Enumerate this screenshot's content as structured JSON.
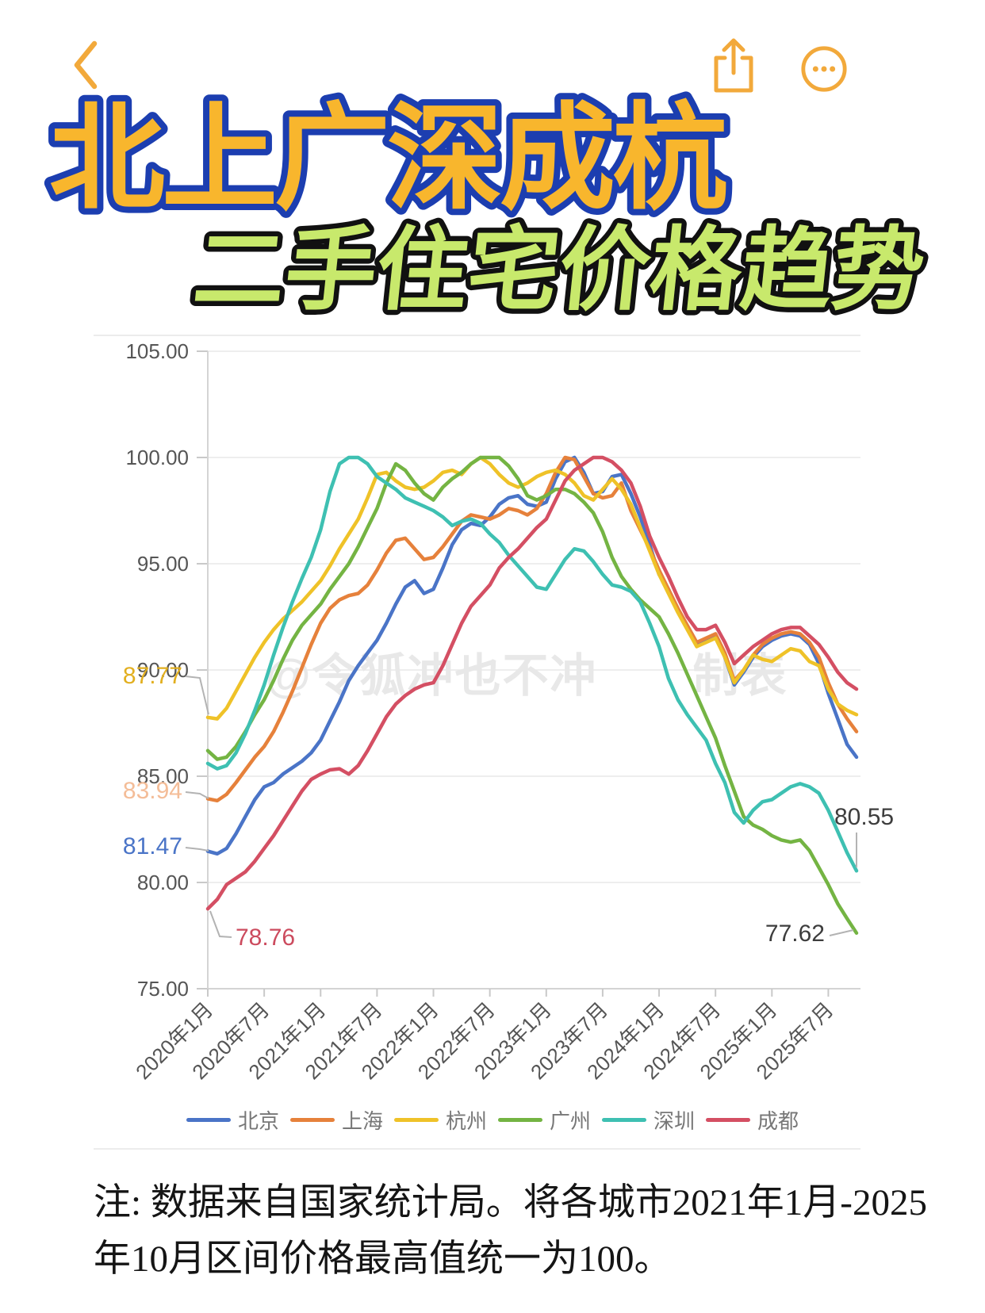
{
  "header": {
    "back_icon": "chevron-left",
    "share_icon": "share-up-arrow",
    "more_icon": "ellipsis-circle",
    "icon_color": "#F2A93B"
  },
  "title": {
    "line1": "北上广深成杭",
    "line1_fill": "#F8B62D",
    "line1_stroke": "#1C3EB0",
    "line2": "二手住宅价格趋势",
    "line2_fill": "#C8E96C",
    "line2_stroke": "#111111"
  },
  "chart_data": {
    "type": "line",
    "title": "北上广深成杭二手住宅价格趋势",
    "xlabel": "",
    "ylabel": "",
    "ylim": [
      75,
      105
    ],
    "y_step": 5,
    "grid": true,
    "legend_position": "bottom",
    "y_tick_labels": [
      "105.00",
      "100.00",
      "95.00",
      "90.00",
      "85.00",
      "80.00",
      "75.00"
    ],
    "x_tick_labels": [
      "2020年1月",
      "2020年7月",
      "2021年1月",
      "2021年7月",
      "2022年1月",
      "2022年7月",
      "2023年1月",
      "2023年7月",
      "2024年1月",
      "2024年7月",
      "2025年1月",
      "2025年7月"
    ],
    "x_tick_every": 6,
    "n_points": 70,
    "x_range_note": "monthly from 2020-01 to 2025-10, normalized so each city's 2021.01-2025.10 max = 100",
    "watermark": "@令狐冲也不冲　　制表",
    "series": [
      {
        "name": "北京",
        "color": "#4A74C7",
        "values": [
          81.47,
          81.35,
          81.6,
          82.3,
          83.1,
          83.9,
          84.5,
          84.7,
          85.1,
          85.4,
          85.7,
          86.1,
          86.7,
          87.6,
          88.5,
          89.5,
          90.2,
          90.8,
          91.4,
          92.2,
          93.1,
          93.9,
          94.2,
          93.6,
          93.8,
          94.8,
          95.9,
          96.6,
          96.9,
          96.8,
          97.2,
          97.8,
          98.1,
          98.2,
          97.8,
          97.7,
          97.9,
          99.0,
          99.8,
          100.0,
          99.3,
          98.3,
          98.4,
          99.1,
          99.2,
          98.3,
          97.2,
          95.9,
          94.5,
          93.8,
          92.8,
          92.0,
          91.2,
          91.4,
          91.6,
          90.6,
          89.3,
          89.9,
          90.6,
          91.1,
          91.4,
          91.6,
          91.7,
          91.6,
          91.2,
          90.3,
          88.9,
          87.7,
          86.5,
          85.9
        ]
      },
      {
        "name": "上海",
        "color": "#E6813B",
        "values": [
          83.94,
          83.85,
          84.15,
          84.7,
          85.3,
          85.9,
          86.4,
          87.1,
          88.0,
          89.0,
          90.1,
          91.2,
          92.2,
          92.9,
          93.3,
          93.5,
          93.6,
          94.0,
          94.7,
          95.5,
          96.1,
          96.2,
          95.7,
          95.2,
          95.3,
          95.8,
          96.4,
          97.0,
          97.3,
          97.2,
          97.1,
          97.3,
          97.6,
          97.5,
          97.3,
          97.6,
          98.3,
          99.3,
          100.0,
          99.9,
          99.1,
          98.3,
          98.1,
          98.2,
          98.8,
          97.5,
          96.6,
          95.7,
          94.7,
          93.8,
          92.9,
          92.1,
          91.3,
          91.5,
          91.7,
          90.8,
          89.5,
          90.0,
          90.7,
          91.2,
          91.5,
          91.7,
          91.8,
          91.7,
          91.3,
          90.6,
          89.4,
          88.4,
          87.7,
          87.1
        ]
      },
      {
        "name": "杭州",
        "color": "#EFC228",
        "values": [
          87.77,
          87.7,
          88.2,
          89.0,
          89.8,
          90.6,
          91.3,
          91.9,
          92.4,
          92.8,
          93.2,
          93.7,
          94.2,
          94.9,
          95.7,
          96.4,
          97.1,
          98.1,
          99.2,
          99.3,
          98.9,
          98.6,
          98.5,
          98.6,
          98.9,
          99.3,
          99.4,
          99.2,
          99.7,
          100.0,
          99.7,
          99.2,
          98.8,
          98.6,
          98.8,
          99.1,
          99.3,
          99.4,
          99.2,
          98.8,
          98.2,
          98.0,
          98.5,
          99.0,
          98.5,
          97.8,
          96.7,
          95.6,
          94.5,
          93.6,
          92.7,
          91.9,
          91.1,
          91.3,
          91.5,
          90.6,
          89.4,
          90.0,
          90.7,
          90.5,
          90.4,
          90.7,
          91.0,
          90.9,
          90.4,
          90.2,
          89.1,
          88.4,
          88.1,
          87.9
        ]
      },
      {
        "name": "广州",
        "color": "#74B443",
        "values": [
          86.2,
          85.8,
          85.9,
          86.4,
          87.1,
          87.9,
          88.6,
          89.5,
          90.5,
          91.4,
          92.1,
          92.6,
          93.1,
          93.8,
          94.4,
          95.0,
          95.8,
          96.7,
          97.6,
          98.8,
          99.7,
          99.4,
          98.8,
          98.3,
          98.0,
          98.6,
          99.0,
          99.3,
          99.7,
          100.0,
          100.0,
          100.0,
          99.6,
          99.0,
          98.2,
          98.0,
          98.2,
          98.5,
          98.5,
          98.3,
          97.9,
          97.4,
          96.5,
          95.3,
          94.4,
          93.8,
          93.3,
          92.9,
          92.5,
          91.7,
          90.8,
          89.8,
          88.8,
          87.8,
          86.8,
          85.5,
          84.3,
          83.1,
          82.7,
          82.5,
          82.2,
          82.0,
          81.9,
          82.0,
          81.5,
          80.7,
          79.9,
          79.0,
          78.3,
          77.62
        ]
      },
      {
        "name": "深圳",
        "color": "#3EC0B2",
        "values": [
          85.6,
          85.35,
          85.5,
          86.1,
          87.0,
          88.1,
          89.3,
          90.7,
          92.0,
          93.2,
          94.3,
          95.3,
          96.6,
          98.4,
          99.7,
          100.0,
          100.0,
          99.7,
          99.1,
          98.8,
          98.5,
          98.1,
          97.9,
          97.7,
          97.5,
          97.2,
          96.8,
          97.0,
          97.1,
          96.9,
          96.4,
          96.0,
          95.4,
          94.9,
          94.4,
          93.9,
          93.8,
          94.5,
          95.2,
          95.7,
          95.6,
          95.1,
          94.5,
          94.0,
          93.9,
          93.7,
          93.2,
          92.2,
          91.1,
          89.6,
          88.6,
          87.9,
          87.3,
          86.7,
          85.6,
          84.7,
          83.3,
          82.8,
          83.4,
          83.8,
          83.9,
          84.2,
          84.5,
          84.65,
          84.5,
          84.2,
          83.4,
          82.4,
          81.4,
          80.55
        ]
      },
      {
        "name": "成都",
        "color": "#D44F63",
        "values": [
          78.76,
          79.2,
          79.9,
          80.2,
          80.5,
          81.0,
          81.6,
          82.2,
          82.9,
          83.6,
          84.3,
          84.85,
          85.1,
          85.3,
          85.35,
          85.1,
          85.5,
          86.2,
          87.0,
          87.8,
          88.4,
          88.8,
          89.1,
          89.3,
          89.4,
          90.2,
          91.2,
          92.2,
          93.0,
          93.5,
          94.0,
          94.8,
          95.3,
          95.7,
          96.2,
          96.7,
          97.1,
          98.0,
          98.9,
          99.4,
          99.7,
          100.0,
          100.0,
          99.8,
          99.4,
          98.8,
          97.7,
          96.3,
          95.3,
          94.4,
          93.4,
          92.5,
          91.9,
          91.9,
          92.1,
          91.3,
          90.3,
          90.7,
          91.1,
          91.4,
          91.7,
          91.9,
          92.0,
          92.0,
          91.6,
          91.2,
          90.6,
          89.9,
          89.4,
          89.1
        ]
      }
    ],
    "annotations": [
      {
        "text": "87.77",
        "color": "#E2AF1F",
        "series": "杭州",
        "at": "first"
      },
      {
        "text": "83.94",
        "color": "#F4BD98",
        "series": "上海",
        "at": "first"
      },
      {
        "text": "81.47",
        "color": "#4A74C7",
        "series": "北京",
        "at": "first"
      },
      {
        "text": "78.76",
        "color": "#CC4B5E",
        "series": "成都",
        "at": "first"
      },
      {
        "text": "80.55",
        "color": "#3D3D3D",
        "series": "深圳",
        "at": "last"
      },
      {
        "text": "77.62",
        "color": "#3D3D3D",
        "series": "广州",
        "at": "last"
      }
    ]
  },
  "note": {
    "line1": "注: 数据来自国家统计局。将各城市2021年1月-2025",
    "line2": "年10月区间价格最高值统一为100。"
  }
}
